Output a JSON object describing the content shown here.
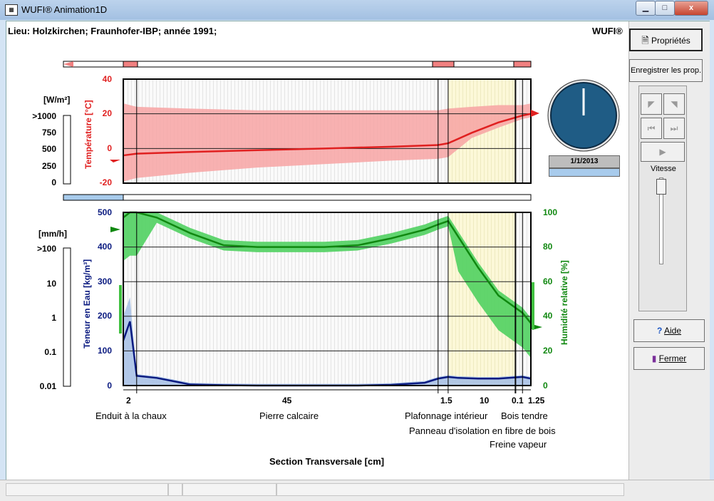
{
  "window": {
    "title": "WUFI® Animation1D",
    "app_icon": "spreadsheet-icon",
    "min": "▁",
    "max": "□",
    "close": "x"
  },
  "header": {
    "location": "Lieu: Holzkirchen; Fraunhofer-IBP; année 1991;",
    "brand": "WUFI®"
  },
  "heat_flux": {
    "unit": "[W/m²]",
    "scale": [
      ">1000",
      "750",
      "500",
      "250",
      "0"
    ]
  },
  "rain": {
    "unit": "[mm/h]",
    "scale": [
      ">100",
      "10",
      "1",
      "0.1",
      "0.01"
    ]
  },
  "temperature_chart": {
    "ylabel": "Température [°C]",
    "ticks": [
      "40",
      "20",
      "0",
      "-20"
    ],
    "ylim": [
      -20,
      40
    ],
    "colors": {
      "line": "#e02020",
      "band": "#f7a3a3",
      "band_light": "#f9d4d4"
    }
  },
  "moisture_chart": {
    "ylabel_left": "Teneur en Eau [kg/m³]",
    "ylabel_right": "Humidité relative [%]",
    "ticks_left": [
      "500",
      "400",
      "300",
      "200",
      "100",
      "0"
    ],
    "ticks_right": [
      "100",
      "80",
      "60",
      "40",
      "20",
      "0"
    ],
    "colors": {
      "water": "#0a1a80",
      "water_band": "#a9c1e6",
      "rh": "#108810",
      "rh_band": "#50d060"
    }
  },
  "chart_data": [
    {
      "type": "line",
      "title": "",
      "xlabel": "Section Transversale [cm]",
      "ylabel": "Température [°C]",
      "ylim": [
        -20,
        40
      ],
      "x": [
        0,
        2,
        10,
        20,
        30,
        40,
        47,
        48.5,
        52,
        56,
        59.6,
        60.85
      ],
      "series": [
        {
          "values": [
            -4,
            -3,
            -2,
            -1,
            0,
            1,
            2,
            3,
            9,
            15,
            19,
            20
          ]
        }
      ],
      "envelope_max": [
        26,
        24,
        23,
        22,
        22,
        22,
        22,
        23,
        24,
        25,
        25,
        26
      ],
      "envelope_min": [
        -19,
        -17,
        -14,
        -11,
        -9,
        -7,
        -6,
        -5,
        6,
        12,
        17,
        18
      ]
    },
    {
      "type": "line",
      "title": "",
      "xlabel": "Section Transversale [cm]",
      "ylabel": "Teneur en Eau [kg/m³] / Humidité relative [%]",
      "ylim": [
        0,
        500
      ],
      "x": [
        0,
        1,
        2,
        5,
        10,
        15,
        20,
        25,
        30,
        35,
        40,
        45,
        47,
        48.5,
        50,
        53,
        56,
        59.6,
        60.85
      ],
      "series": [
        {
          "name": "Teneur en Eau [kg/m³]",
          "values": [
            130,
            185,
            28,
            22,
            3,
            1,
            0,
            0,
            0,
            0,
            2,
            8,
            20,
            25,
            22,
            20,
            20,
            25,
            20
          ]
        },
        {
          "name": "Humidité relative [%]",
          "values": [
            97,
            100,
            100,
            97,
            88,
            81,
            80,
            80,
            80,
            81,
            85,
            90,
            93,
            95,
            86,
            68,
            52,
            42,
            36
          ]
        }
      ]
    }
  ],
  "layers": {
    "thickness": [
      "2",
      "45",
      "1.5",
      "10",
      "0.1",
      "1.25"
    ],
    "names": [
      "Enduit à la chaux",
      "Pierre calcaire",
      "Plafonnage intérieur",
      "Bois tendre",
      "Panneau d'isolation en fibre de bois",
      "Freine vapeur"
    ],
    "axis_title": "Section Transversale [cm]"
  },
  "clock": {
    "date": "1/1/2013"
  },
  "sidebar": {
    "properties": "Propriétés",
    "save_props": "Enregistrer les prop.",
    "speed": "Vitesse",
    "help": "Aide",
    "close": "Fermer"
  }
}
